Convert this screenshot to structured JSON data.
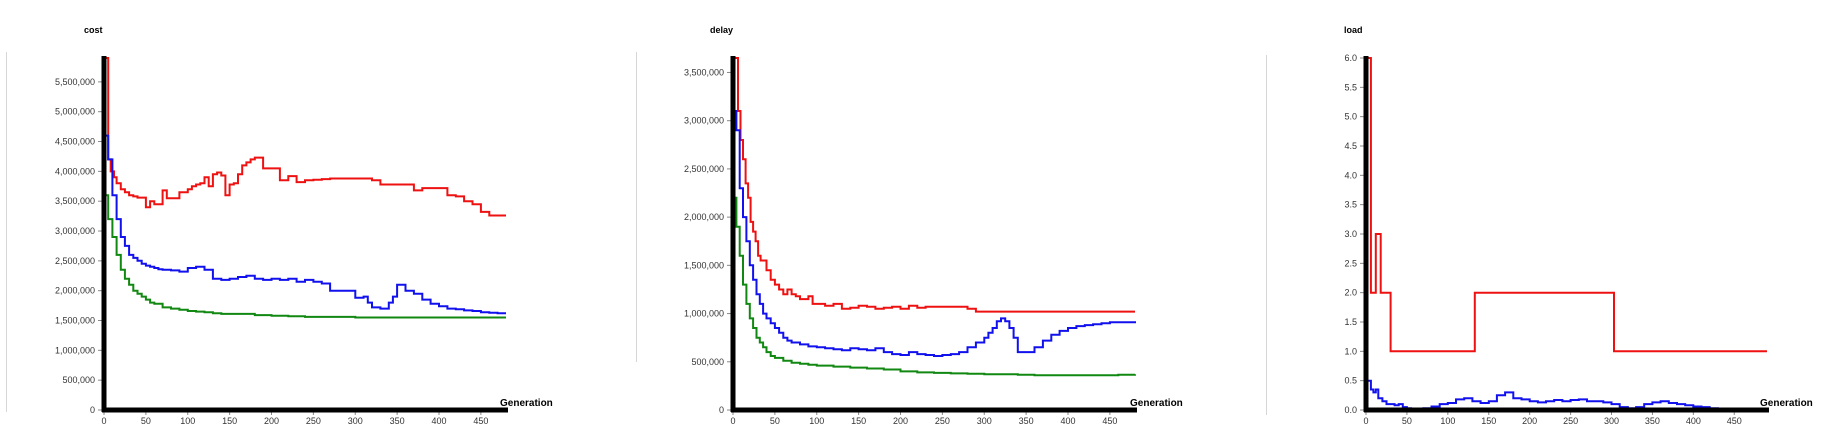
{
  "colors": {
    "red": "#ee1111",
    "blue": "#1111ee",
    "green": "#118811",
    "axis": "#000000",
    "tick_text": "#333333"
  },
  "chart_data": [
    {
      "type": "line",
      "title": "cost",
      "xlabel": "Generation",
      "ylabel": "",
      "xlim": [
        0,
        480
      ],
      "ylim": [
        0,
        5900000
      ],
      "xticks": [
        0,
        50,
        100,
        150,
        200,
        250,
        300,
        350,
        400,
        450
      ],
      "yticks": [
        0,
        500000,
        1000000,
        1500000,
        2000000,
        2500000,
        3000000,
        3500000,
        4000000,
        4500000,
        5000000,
        5500000
      ],
      "ytick_labels": [
        "0",
        "500,000",
        "1,000,000",
        "1,500,000",
        "2,000,000",
        "2,500,000",
        "3,000,000",
        "3,500,000",
        "4,000,000",
        "4,500,000",
        "5,000,000",
        "5,500,000"
      ],
      "series": [
        {
          "color": "red",
          "x": [
            0,
            2,
            5,
            8,
            12,
            15,
            20,
            25,
            30,
            35,
            40,
            45,
            50,
            55,
            60,
            65,
            70,
            75,
            80,
            85,
            90,
            95,
            100,
            105,
            110,
            115,
            120,
            125,
            130,
            135,
            140,
            145,
            150,
            155,
            160,
            165,
            170,
            175,
            180,
            185,
            190,
            195,
            200,
            210,
            220,
            230,
            240,
            250,
            260,
            270,
            280,
            290,
            300,
            310,
            320,
            330,
            340,
            350,
            360,
            370,
            380,
            390,
            400,
            410,
            420,
            430,
            440,
            450,
            460,
            470,
            480
          ],
          "y": [
            5900000,
            5900000,
            4200000,
            4000000,
            3900000,
            3800000,
            3700000,
            3650000,
            3600000,
            3580000,
            3560000,
            3560000,
            3400000,
            3500000,
            3450000,
            3450000,
            3680000,
            3550000,
            3550000,
            3550000,
            3650000,
            3650000,
            3700000,
            3750000,
            3780000,
            3800000,
            3900000,
            3750000,
            3950000,
            3980000,
            3930000,
            3600000,
            3780000,
            3800000,
            3950000,
            4100000,
            4150000,
            4200000,
            4230000,
            4230000,
            4050000,
            4050000,
            4050000,
            3850000,
            3920000,
            3820000,
            3850000,
            3860000,
            3870000,
            3880000,
            3880000,
            3880000,
            3880000,
            3880000,
            3850000,
            3780000,
            3780000,
            3780000,
            3780000,
            3680000,
            3720000,
            3720000,
            3720000,
            3600000,
            3580000,
            3500000,
            3450000,
            3320000,
            3260000,
            3260000,
            3260000
          ]
        },
        {
          "color": "blue",
          "x": [
            0,
            5,
            10,
            15,
            20,
            25,
            30,
            35,
            40,
            45,
            50,
            55,
            60,
            65,
            70,
            80,
            90,
            100,
            110,
            120,
            130,
            140,
            150,
            160,
            170,
            180,
            190,
            200,
            210,
            220,
            230,
            240,
            250,
            260,
            270,
            280,
            290,
            300,
            310,
            315,
            320,
            330,
            340,
            345,
            350,
            360,
            370,
            380,
            390,
            400,
            410,
            420,
            430,
            440,
            450,
            460,
            470,
            480
          ],
          "y": [
            4600000,
            4200000,
            3600000,
            3200000,
            2900000,
            2750000,
            2600000,
            2550000,
            2500000,
            2450000,
            2420000,
            2400000,
            2380000,
            2360000,
            2350000,
            2340000,
            2320000,
            2380000,
            2400000,
            2350000,
            2200000,
            2180000,
            2200000,
            2230000,
            2250000,
            2200000,
            2180000,
            2200000,
            2180000,
            2200000,
            2150000,
            2180000,
            2150000,
            2120000,
            2000000,
            2000000,
            2000000,
            1880000,
            1900000,
            1800000,
            1720000,
            1700000,
            1800000,
            1900000,
            2100000,
            2000000,
            1950000,
            1850000,
            1780000,
            1740000,
            1700000,
            1690000,
            1670000,
            1660000,
            1640000,
            1630000,
            1620000,
            1620000
          ]
        },
        {
          "color": "green",
          "x": [
            0,
            5,
            10,
            15,
            20,
            25,
            30,
            35,
            40,
            45,
            50,
            55,
            60,
            70,
            80,
            90,
            100,
            110,
            120,
            130,
            140,
            150,
            160,
            180,
            200,
            220,
            240,
            260,
            280,
            300,
            320,
            340,
            360,
            380,
            400,
            420,
            440,
            460,
            480
          ],
          "y": [
            3600000,
            3200000,
            2900000,
            2600000,
            2350000,
            2200000,
            2100000,
            2000000,
            1950000,
            1900000,
            1850000,
            1800000,
            1780000,
            1720000,
            1700000,
            1680000,
            1660000,
            1650000,
            1640000,
            1620000,
            1610000,
            1610000,
            1610000,
            1590000,
            1580000,
            1570000,
            1560000,
            1560000,
            1560000,
            1550000,
            1550000,
            1550000,
            1550000,
            1550000,
            1550000,
            1550000,
            1550000,
            1550000,
            1550000
          ]
        }
      ]
    },
    {
      "type": "line",
      "title": "delay",
      "xlabel": "Generation",
      "ylabel": "",
      "xlim": [
        0,
        480
      ],
      "ylim": [
        0,
        3650000
      ],
      "xticks": [
        0,
        50,
        100,
        150,
        200,
        250,
        300,
        350,
        400,
        450
      ],
      "yticks": [
        0,
        500000,
        1000000,
        1500000,
        2000000,
        2500000,
        3000000,
        3500000
      ],
      "ytick_labels": [
        "0",
        "500,000",
        "1,000,000",
        "1,500,000",
        "2,000,000",
        "2,500,000",
        "3,000,000",
        "3,500,000"
      ],
      "series": [
        {
          "color": "red",
          "x": [
            0,
            3,
            6,
            9,
            12,
            15,
            18,
            21,
            24,
            27,
            30,
            33,
            36,
            40,
            45,
            50,
            55,
            60,
            65,
            70,
            75,
            80,
            85,
            90,
            95,
            100,
            110,
            120,
            130,
            140,
            150,
            160,
            170,
            180,
            190,
            200,
            210,
            220,
            230,
            240,
            250,
            260,
            270,
            280,
            290,
            300,
            320,
            340,
            360,
            380,
            400,
            420,
            440,
            460,
            480
          ],
          "y": [
            3650000,
            3650000,
            3100000,
            2800000,
            2600000,
            2350000,
            2200000,
            1950000,
            1850000,
            1750000,
            1600000,
            1550000,
            1550000,
            1450000,
            1350000,
            1300000,
            1250000,
            1200000,
            1250000,
            1200000,
            1180000,
            1150000,
            1150000,
            1180000,
            1100000,
            1100000,
            1080000,
            1100000,
            1050000,
            1060000,
            1080000,
            1070000,
            1050000,
            1060000,
            1070000,
            1050000,
            1080000,
            1060000,
            1070000,
            1070000,
            1070000,
            1070000,
            1070000,
            1050000,
            1020000,
            1020000,
            1020000,
            1020000,
            1020000,
            1020000,
            1020000,
            1020000,
            1020000,
            1020000,
            1020000
          ]
        },
        {
          "color": "blue",
          "x": [
            0,
            4,
            8,
            12,
            16,
            20,
            24,
            28,
            32,
            36,
            40,
            45,
            50,
            55,
            60,
            65,
            70,
            80,
            90,
            100,
            110,
            120,
            130,
            140,
            150,
            160,
            170,
            180,
            190,
            200,
            210,
            220,
            230,
            240,
            250,
            260,
            270,
            280,
            290,
            300,
            305,
            310,
            315,
            320,
            325,
            330,
            335,
            340,
            350,
            360,
            370,
            380,
            390,
            400,
            410,
            420,
            430,
            440,
            450,
            460,
            480
          ],
          "y": [
            3100000,
            2900000,
            2300000,
            2000000,
            1750000,
            1500000,
            1350000,
            1200000,
            1100000,
            1000000,
            950000,
            900000,
            850000,
            800000,
            750000,
            720000,
            700000,
            680000,
            660000,
            650000,
            640000,
            630000,
            620000,
            640000,
            630000,
            620000,
            640000,
            600000,
            580000,
            570000,
            600000,
            580000,
            570000,
            560000,
            570000,
            580000,
            600000,
            650000,
            700000,
            750000,
            800000,
            850000,
            920000,
            950000,
            920000,
            850000,
            750000,
            600000,
            600000,
            650000,
            720000,
            780000,
            820000,
            850000,
            870000,
            880000,
            890000,
            900000,
            910000,
            910000,
            920000
          ]
        },
        {
          "color": "green",
          "x": [
            0,
            4,
            8,
            12,
            16,
            20,
            24,
            28,
            32,
            36,
            40,
            45,
            50,
            60,
            70,
            80,
            90,
            100,
            120,
            140,
            160,
            180,
            200,
            220,
            240,
            260,
            280,
            300,
            320,
            340,
            360,
            380,
            400,
            420,
            440,
            460,
            480
          ],
          "y": [
            2200000,
            1900000,
            1600000,
            1300000,
            1100000,
            950000,
            850000,
            750000,
            700000,
            650000,
            600000,
            560000,
            540000,
            510000,
            490000,
            480000,
            470000,
            460000,
            450000,
            440000,
            430000,
            420000,
            400000,
            390000,
            385000,
            380000,
            375000,
            370000,
            370000,
            365000,
            360000,
            360000,
            360000,
            360000,
            360000,
            365000,
            370000
          ]
        }
      ]
    },
    {
      "type": "line",
      "title": "load",
      "xlabel": "Generation",
      "ylabel": "",
      "xlim": [
        0,
        490
      ],
      "ylim": [
        0,
        6.0
      ],
      "xticks": [
        0,
        50,
        100,
        150,
        200,
        250,
        300,
        350,
        400,
        450
      ],
      "yticks": [
        0,
        0.5,
        1.0,
        1.5,
        2.0,
        2.5,
        3.0,
        3.5,
        4.0,
        4.5,
        5.0,
        5.5,
        6.0
      ],
      "ytick_labels": [
        "0.0",
        "0.5",
        "1.0",
        "1.5",
        "2.0",
        "2.5",
        "3.0",
        "3.5",
        "4.0",
        "4.5",
        "5.0",
        "5.5",
        "6.0"
      ],
      "series": [
        {
          "color": "red",
          "x": [
            0,
            3,
            6,
            9,
            12,
            15,
            18,
            21,
            24,
            27,
            30,
            35,
            40,
            60,
            80,
            100,
            120,
            133,
            150,
            200,
            250,
            300,
            303,
            320,
            350,
            400,
            450,
            490
          ],
          "y": [
            6.0,
            6.0,
            2.0,
            2.0,
            3.0,
            3.0,
            2.0,
            2.0,
            2.0,
            2.0,
            1.0,
            1.0,
            1.0,
            1.0,
            1.0,
            1.0,
            1.0,
            2.0,
            2.0,
            2.0,
            2.0,
            2.0,
            1.0,
            1.0,
            1.0,
            1.0,
            1.0,
            1.0
          ]
        },
        {
          "color": "blue",
          "x": [
            0,
            3,
            6,
            9,
            12,
            15,
            20,
            25,
            30,
            35,
            40,
            45,
            50,
            55,
            60,
            70,
            80,
            90,
            100,
            110,
            120,
            130,
            140,
            150,
            160,
            170,
            180,
            190,
            200,
            210,
            220,
            230,
            240,
            250,
            260,
            270,
            280,
            290,
            300,
            310,
            320,
            330,
            340,
            350,
            360,
            370,
            380,
            390,
            400,
            410,
            420,
            430,
            440,
            450,
            460,
            470,
            480,
            490
          ],
          "y": [
            0.5,
            0.5,
            0.35,
            0.3,
            0.35,
            0.2,
            0.15,
            0.1,
            0.1,
            0.08,
            0.1,
            0.05,
            0.03,
            0.02,
            0.02,
            0.03,
            0.06,
            0.1,
            0.12,
            0.18,
            0.2,
            0.15,
            0.12,
            0.15,
            0.25,
            0.3,
            0.2,
            0.18,
            0.15,
            0.13,
            0.15,
            0.17,
            0.15,
            0.17,
            0.18,
            0.15,
            0.15,
            0.13,
            0.1,
            0.05,
            0.03,
            0.05,
            0.1,
            0.13,
            0.15,
            0.12,
            0.1,
            0.08,
            0.06,
            0.05,
            0.03,
            0.02,
            0.02,
            0.01,
            0.01,
            0.01,
            0.01,
            0.01
          ]
        },
        {
          "color": "green",
          "x": [
            0,
            20,
            40,
            60,
            100,
            150,
            200,
            250,
            300,
            350,
            400,
            450,
            490
          ],
          "y": [
            0.0,
            0.0,
            0.0,
            0.0,
            0.0,
            0.0,
            0.0,
            0.0,
            0.0,
            0.0,
            0.0,
            0.0,
            0.0
          ]
        }
      ]
    }
  ]
}
